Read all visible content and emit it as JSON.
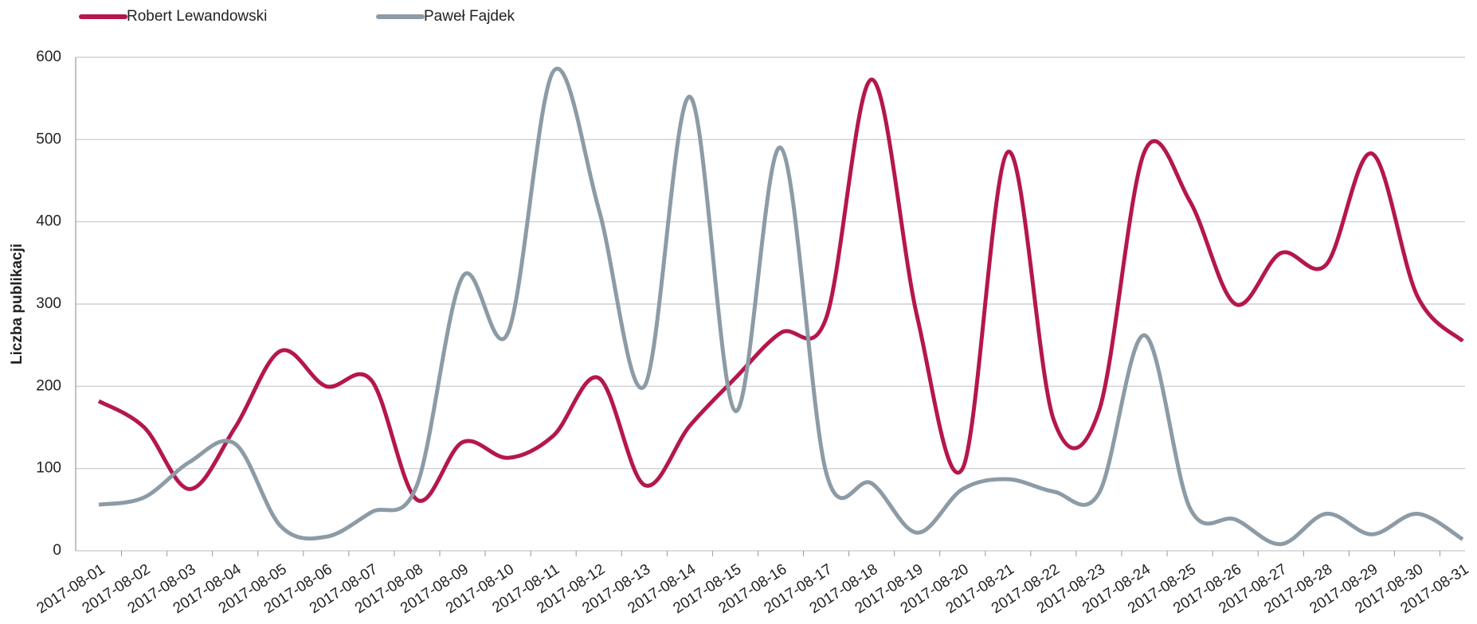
{
  "chart_data": {
    "type": "line",
    "y_label": "Liczba publikacji",
    "categories": [
      "2017-08-01",
      "2017-08-02",
      "2017-08-03",
      "2017-08-04",
      "2017-08-05",
      "2017-08-06",
      "2017-08-07",
      "2017-08-08",
      "2017-08-09",
      "2017-08-10",
      "2017-08-11",
      "2017-08-12",
      "2017-08-13",
      "2017-08-14",
      "2017-08-15",
      "2017-08-16",
      "2017-08-17",
      "2017-08-18",
      "2017-08-19",
      "2017-08-20",
      "2017-08-21",
      "2017-08-22",
      "2017-08-23",
      "2017-08-24",
      "2017-08-25",
      "2017-08-26",
      "2017-08-27",
      "2017-08-28",
      "2017-08-29",
      "2017-08-30",
      "2017-08-31"
    ],
    "series": [
      {
        "name": "Robert Lewandowski",
        "color": "#b5174b",
        "values": [
          182,
          150,
          75,
          150,
          243,
          200,
          207,
          62,
          132,
          113,
          140,
          210,
          80,
          152,
          210,
          265,
          283,
          573,
          285,
          100,
          485,
          160,
          170,
          485,
          425,
          300,
          362,
          348,
          483,
          310,
          255
        ]
      },
      {
        "name": "Paweł Fajdek",
        "color": "#8c9ba5",
        "values": [
          56,
          65,
          108,
          130,
          30,
          17,
          47,
          80,
          333,
          265,
          583,
          415,
          200,
          552,
          170,
          490,
          95,
          82,
          22,
          75,
          87,
          72,
          70,
          262,
          52,
          38,
          8,
          45,
          20,
          45,
          14
        ]
      }
    ],
    "ylim": [
      0,
      600
    ],
    "yticks": [
      0,
      100,
      200,
      300,
      400,
      500,
      600
    ],
    "grid": true
  }
}
